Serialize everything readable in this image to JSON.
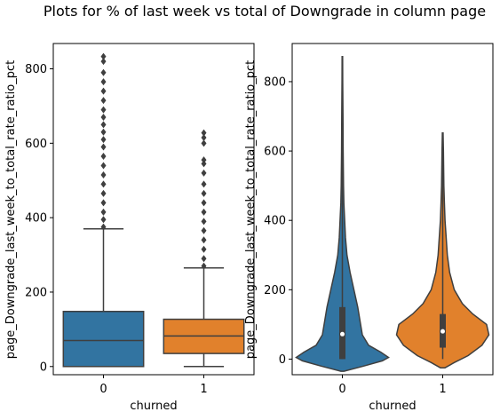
{
  "title": "Plots for % of last week vs total of Downgrade in column page",
  "colors": {
    "class0": "#3274a1",
    "class1": "#e1812c",
    "line": "#3f3f3f"
  },
  "chart_data": [
    {
      "type": "box",
      "xlabel": "churned",
      "ylabel": "page_Downgrade_last_week_to_total_rate_ratio_pct",
      "categories": [
        "0",
        "1"
      ],
      "yticks": [
        "0",
        "200",
        "400",
        "600",
        "800"
      ],
      "ylim": [
        -22,
        868
      ],
      "boxes": [
        {
          "category": "0",
          "q1": 0,
          "median": 70,
          "q3": 148,
          "whisker_low": 0,
          "whisker_high": 370,
          "outliers": [
            375,
            395,
            415,
            440,
            465,
            490,
            515,
            540,
            565,
            590,
            610,
            630,
            650,
            670,
            690,
            715,
            740,
            765,
            790,
            820,
            833
          ]
        },
        {
          "category": "1",
          "q1": 35,
          "median": 82,
          "q3": 127,
          "whisker_low": 0,
          "whisker_high": 265,
          "outliers": [
            270,
            290,
            315,
            340,
            365,
            390,
            415,
            440,
            465,
            490,
            520,
            545,
            555,
            600,
            615,
            628
          ]
        }
      ]
    },
    {
      "type": "violin",
      "xlabel": "churned",
      "ylabel": "page_Downgrade_last_week_to_total_rate_ratio_pct",
      "categories": [
        "0",
        "1"
      ],
      "yticks": [
        "0",
        "200",
        "400",
        "600",
        "800"
      ],
      "ylim": [
        -45,
        910
      ],
      "violins": [
        {
          "category": "0",
          "q1": 0,
          "median": 72,
          "q3": 150,
          "min": 0,
          "max": 872,
          "profile": [
            [
              -35,
              2
            ],
            [
              -20,
              28
            ],
            [
              -5,
              52
            ],
            [
              5,
              60
            ],
            [
              20,
              50
            ],
            [
              40,
              34
            ],
            [
              70,
              26
            ],
            [
              110,
              23
            ],
            [
              150,
              20
            ],
            [
              200,
              15
            ],
            [
              250,
              10
            ],
            [
              300,
              6
            ],
            [
              350,
              4
            ],
            [
              400,
              3
            ],
            [
              450,
              2
            ],
            [
              500,
              1.5
            ],
            [
              600,
              1
            ],
            [
              700,
              0.8
            ],
            [
              800,
              0.5
            ],
            [
              872,
              0.3
            ]
          ]
        },
        {
          "category": "1",
          "q1": 33,
          "median": 80,
          "q3": 130,
          "min": 0,
          "max": 652,
          "profile": [
            [
              -25,
              2
            ],
            [
              -10,
              10
            ],
            [
              10,
              22
            ],
            [
              40,
              34
            ],
            [
              70,
              40
            ],
            [
              100,
              38
            ],
            [
              130,
              26
            ],
            [
              160,
              17
            ],
            [
              200,
              10
            ],
            [
              250,
              6
            ],
            [
              300,
              4
            ],
            [
              350,
              3
            ],
            [
              400,
              2
            ],
            [
              450,
              1.5
            ],
            [
              500,
              1
            ],
            [
              560,
              0.8
            ],
            [
              600,
              0.6
            ],
            [
              652,
              0.3
            ]
          ]
        }
      ]
    }
  ]
}
